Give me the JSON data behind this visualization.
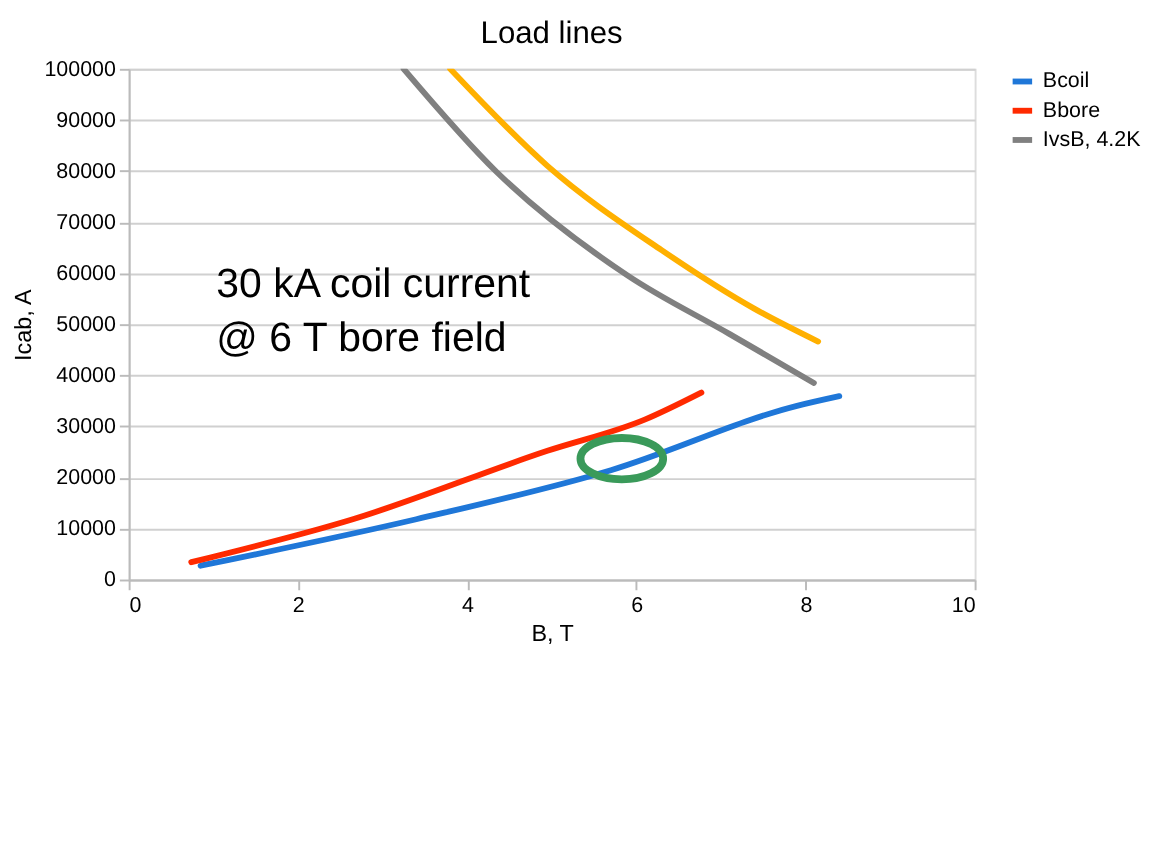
{
  "chart_data": {
    "type": "line",
    "title": "Load lines",
    "xlabel": "B, T",
    "ylabel": "Icab, A",
    "xlim": [
      0,
      10
    ],
    "xticks": [
      0,
      2,
      4,
      6,
      8,
      10
    ],
    "ylim": [
      0,
      100000
    ],
    "yticks": [
      0,
      10000,
      20000,
      30000,
      40000,
      50000,
      60000,
      70000,
      80000,
      90000,
      100000
    ],
    "grid": "y",
    "legend": "right",
    "marker": "none",
    "line_style": "solid",
    "annotations": [
      "30 kA coil current\n@ 6 T bore field"
    ],
    "series": [
      {
        "name": "Bcoil",
        "color": "#1f77d8",
        "x": [
          0.85,
          3.4,
          5.7,
          7.9,
          8.4
        ],
        "values": [
          2700,
          11800,
          21400,
          34000,
          35900
        ]
      },
      {
        "name": "Bbore",
        "color": "#ff2a00",
        "x": [
          0.74,
          2.65,
          4.95,
          6.1,
          6.77
        ],
        "values": [
          3400,
          11800,
          25200,
          31300,
          36600
        ]
      },
      {
        "name": "IvsB, 4.2K",
        "color": "#808080",
        "x": [
          3.25,
          4.35,
          5.9,
          7.1,
          8.1
        ],
        "values": [
          100000,
          79800,
          59500,
          48100,
          38500
        ]
      },
      {
        "color": "#ffb000",
        "x": [
          3.8,
          4.95,
          6.3,
          7.4,
          8.15
        ],
        "values": [
          100000,
          81000,
          64500,
          53000,
          46600
        ]
      }
    ]
  }
}
